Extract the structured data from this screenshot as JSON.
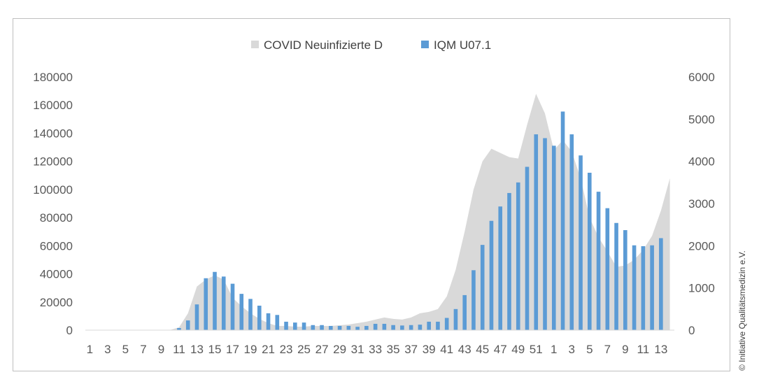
{
  "copyright": "© Initiative Qualitätsmedizin e.V.",
  "colors": {
    "area": "#d9d9d9",
    "bars": "#5b9bd5",
    "text": "#595959",
    "frame": "#bfbfbf"
  },
  "chart_data": {
    "type": "bar",
    "title": "",
    "legend": {
      "placement": "top-center",
      "entries": [
        {
          "label": "COVID Neuinfizierte D",
          "color": "#d9d9d9",
          "kind": "area"
        },
        {
          "label": "IQM U07.1",
          "color": "#5b9bd5",
          "kind": "bar"
        }
      ]
    },
    "x_categories": [
      1,
      2,
      3,
      4,
      5,
      6,
      7,
      8,
      9,
      10,
      11,
      12,
      13,
      14,
      15,
      16,
      17,
      18,
      19,
      20,
      21,
      22,
      23,
      24,
      25,
      26,
      27,
      28,
      29,
      30,
      31,
      32,
      33,
      34,
      35,
      36,
      37,
      38,
      39,
      40,
      41,
      42,
      43,
      44,
      45,
      46,
      47,
      48,
      49,
      50,
      51,
      52,
      53,
      1,
      2,
      3,
      4,
      5,
      6,
      7,
      8,
      9,
      10,
      11,
      12,
      13
    ],
    "x_tick_labels": [
      "1",
      "3",
      "5",
      "7",
      "9",
      "11",
      "13",
      "15",
      "17",
      "19",
      "21",
      "23",
      "25",
      "27",
      "29",
      "31",
      "33",
      "35",
      "37",
      "39",
      "41",
      "43",
      "45",
      "47",
      "49",
      "51",
      "1",
      "3",
      "5",
      "7",
      "9",
      "11",
      "13"
    ],
    "y_left": {
      "ticks": [
        0,
        20000,
        40000,
        60000,
        80000,
        100000,
        120000,
        140000,
        160000,
        180000
      ],
      "range": [
        0,
        180000
      ]
    },
    "y_right": {
      "ticks": [
        0,
        1000,
        2000,
        3000,
        4000,
        5000,
        6000
      ],
      "range": [
        0,
        6000
      ]
    },
    "grid": false,
    "series": [
      {
        "name": "COVID Neuinfizierte D",
        "type": "area",
        "axis": "left",
        "values": [
          0,
          0,
          0,
          0,
          0,
          0,
          0,
          0,
          0,
          100,
          2000,
          12000,
          31000,
          36000,
          39000,
          36000,
          23000,
          17000,
          12000,
          8000,
          5000,
          3000,
          3000,
          2500,
          2500,
          3000,
          3000,
          3000,
          3500,
          4000,
          5000,
          6000,
          7500,
          9000,
          8000,
          7500,
          9000,
          12000,
          13000,
          15000,
          24000,
          43000,
          70000,
          100000,
          120000,
          129000,
          126000,
          123000,
          122000,
          146000,
          168000,
          154000,
          128000,
          135000,
          127000,
          108000,
          80000,
          66000,
          56000,
          45000,
          46000,
          50000,
          57000,
          67000,
          85000,
          108000
        ]
      },
      {
        "name": "IQM U07.1",
        "type": "bar",
        "axis": "right",
        "values": [
          0,
          0,
          0,
          0,
          0,
          0,
          0,
          0,
          0,
          0,
          50,
          230,
          610,
          1230,
          1380,
          1270,
          1100,
          860,
          740,
          580,
          400,
          360,
          200,
          180,
          180,
          120,
          120,
          100,
          100,
          100,
          80,
          100,
          150,
          150,
          120,
          110,
          120,
          130,
          200,
          200,
          290,
          500,
          830,
          1420,
          2020,
          2590,
          2930,
          3250,
          3500,
          3870,
          4640,
          4550,
          4370,
          5180,
          4640,
          4140,
          3730,
          3280,
          2890,
          2540,
          2370,
          2010,
          1990,
          2010,
          2180
        ]
      }
    ]
  }
}
